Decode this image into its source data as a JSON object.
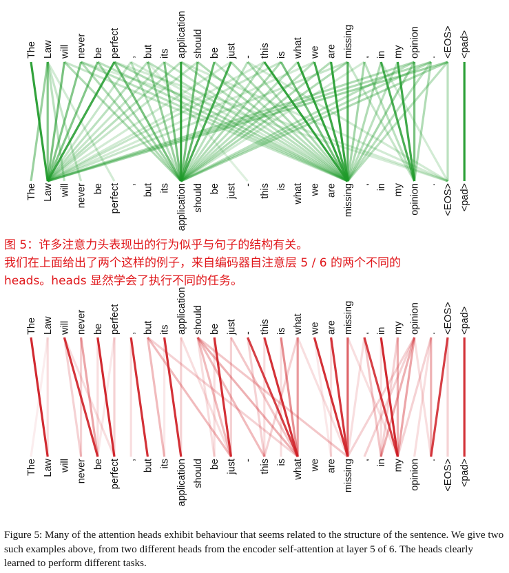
{
  "tokens": [
    "The",
    "Law",
    "will",
    "never",
    "be",
    "perfect",
    ",",
    "but",
    "its",
    "application",
    "should",
    "be",
    "just",
    "-",
    "this",
    "is",
    "what",
    "we",
    "are",
    "missing",
    ",",
    "in",
    "my",
    "opinion",
    ".",
    "<EOS>",
    "<pad>"
  ],
  "colors": {
    "green": "#1f9a2a",
    "red": "#cf1f26",
    "caption_red": "#e0181c"
  },
  "green_head": {
    "links": [
      [
        0,
        1,
        0.92
      ],
      [
        1,
        0,
        0.45
      ],
      [
        1,
        1,
        0.55
      ],
      [
        1,
        2,
        0.3
      ],
      [
        1,
        3,
        0.25
      ],
      [
        1,
        5,
        0.2
      ],
      [
        2,
        1,
        0.6
      ],
      [
        2,
        9,
        0.35
      ],
      [
        2,
        19,
        0.25
      ],
      [
        3,
        1,
        0.55
      ],
      [
        3,
        9,
        0.35
      ],
      [
        3,
        19,
        0.3
      ],
      [
        3,
        25,
        0.18
      ],
      [
        4,
        1,
        0.55
      ],
      [
        4,
        9,
        0.4
      ],
      [
        4,
        19,
        0.3
      ],
      [
        5,
        1,
        0.85
      ],
      [
        5,
        9,
        0.6
      ],
      [
        5,
        19,
        0.35
      ],
      [
        5,
        25,
        0.2
      ],
      [
        6,
        1,
        0.25
      ],
      [
        6,
        9,
        0.3
      ],
      [
        6,
        19,
        0.2
      ],
      [
        7,
        1,
        0.3
      ],
      [
        7,
        9,
        0.45
      ],
      [
        7,
        19,
        0.3
      ],
      [
        7,
        13,
        0.15
      ],
      [
        8,
        9,
        0.6
      ],
      [
        8,
        1,
        0.25
      ],
      [
        8,
        19,
        0.25
      ],
      [
        9,
        9,
        0.92
      ],
      [
        9,
        1,
        0.3
      ],
      [
        9,
        19,
        0.3
      ],
      [
        9,
        25,
        0.2
      ],
      [
        10,
        9,
        0.6
      ],
      [
        10,
        1,
        0.25
      ],
      [
        10,
        19,
        0.35
      ],
      [
        11,
        9,
        0.7
      ],
      [
        11,
        19,
        0.3
      ],
      [
        12,
        9,
        0.8
      ],
      [
        12,
        19,
        0.35
      ],
      [
        12,
        1,
        0.2
      ],
      [
        13,
        9,
        0.3
      ],
      [
        13,
        19,
        0.35
      ],
      [
        13,
        25,
        0.2
      ],
      [
        14,
        19,
        0.9
      ],
      [
        14,
        9,
        0.3
      ],
      [
        14,
        1,
        0.2
      ],
      [
        15,
        19,
        0.6
      ],
      [
        15,
        9,
        0.35
      ],
      [
        15,
        1,
        0.25
      ],
      [
        16,
        19,
        0.9
      ],
      [
        16,
        9,
        0.3
      ],
      [
        17,
        19,
        0.85
      ],
      [
        17,
        9,
        0.3
      ],
      [
        17,
        1,
        0.2
      ],
      [
        18,
        19,
        0.9
      ],
      [
        18,
        9,
        0.35
      ],
      [
        19,
        19,
        0.75
      ],
      [
        19,
        1,
        0.25
      ],
      [
        19,
        9,
        0.35
      ],
      [
        19,
        23,
        0.25
      ],
      [
        20,
        19,
        0.4
      ],
      [
        20,
        23,
        0.3
      ],
      [
        20,
        9,
        0.2
      ],
      [
        21,
        23,
        0.8
      ],
      [
        21,
        19,
        0.35
      ],
      [
        21,
        25,
        0.2
      ],
      [
        22,
        23,
        0.85
      ],
      [
        22,
        19,
        0.3
      ],
      [
        23,
        23,
        0.6
      ],
      [
        23,
        19,
        0.4
      ],
      [
        23,
        1,
        0.35
      ],
      [
        23,
        9,
        0.3
      ],
      [
        24,
        23,
        0.35
      ],
      [
        24,
        19,
        0.3
      ],
      [
        24,
        1,
        0.35
      ],
      [
        24,
        9,
        0.3
      ],
      [
        25,
        1,
        0.4
      ],
      [
        25,
        9,
        0.35
      ],
      [
        25,
        19,
        0.3
      ],
      [
        25,
        25,
        0.3
      ],
      [
        26,
        26,
        0.95
      ]
    ]
  },
  "red_head": {
    "links": [
      [
        0,
        1,
        0.95
      ],
      [
        1,
        0,
        0.08
      ],
      [
        1,
        1,
        0.15
      ],
      [
        2,
        4,
        0.9
      ],
      [
        2,
        3,
        0.2
      ],
      [
        2,
        5,
        0.15
      ],
      [
        3,
        4,
        0.4
      ],
      [
        3,
        3,
        0.2
      ],
      [
        4,
        5,
        0.95
      ],
      [
        4,
        4,
        0.15
      ],
      [
        5,
        5,
        0.2
      ],
      [
        5,
        4,
        0.1
      ],
      [
        6,
        7,
        0.92
      ],
      [
        6,
        6,
        0.15
      ],
      [
        7,
        8,
        0.3
      ],
      [
        7,
        12,
        0.3
      ],
      [
        7,
        16,
        0.2
      ],
      [
        8,
        9,
        0.92
      ],
      [
        8,
        8,
        0.1
      ],
      [
        9,
        9,
        0.2
      ],
      [
        9,
        12,
        0.15
      ],
      [
        10,
        12,
        0.3
      ],
      [
        10,
        14,
        0.3
      ],
      [
        10,
        16,
        0.35
      ],
      [
        10,
        19,
        0.25
      ],
      [
        10,
        11,
        0.15
      ],
      [
        11,
        12,
        0.92
      ],
      [
        11,
        11,
        0.15
      ],
      [
        12,
        16,
        0.25
      ],
      [
        12,
        12,
        0.2
      ],
      [
        13,
        16,
        0.85
      ],
      [
        13,
        14,
        0.2
      ],
      [
        14,
        16,
        0.92
      ],
      [
        14,
        14,
        0.15
      ],
      [
        15,
        16,
        0.5
      ],
      [
        15,
        15,
        0.15
      ],
      [
        16,
        16,
        0.45
      ],
      [
        16,
        14,
        0.2
      ],
      [
        16,
        19,
        0.15
      ],
      [
        17,
        19,
        0.92
      ],
      [
        17,
        18,
        0.1
      ],
      [
        18,
        19,
        0.9
      ],
      [
        18,
        18,
        0.15
      ],
      [
        19,
        19,
        0.7
      ],
      [
        19,
        22,
        0.15
      ],
      [
        20,
        22,
        0.85
      ],
      [
        20,
        21,
        0.25
      ],
      [
        20,
        19,
        0.15
      ],
      [
        21,
        22,
        0.95
      ],
      [
        21,
        21,
        0.15
      ],
      [
        22,
        22,
        0.35
      ],
      [
        22,
        21,
        0.2
      ],
      [
        23,
        22,
        0.4
      ],
      [
        23,
        21,
        0.35
      ],
      [
        23,
        20,
        0.2
      ],
      [
        23,
        19,
        0.2
      ],
      [
        23,
        24,
        0.15
      ],
      [
        24,
        22,
        0.2
      ],
      [
        24,
        24,
        0.35
      ],
      [
        24,
        23,
        0.15
      ],
      [
        25,
        24,
        0.85
      ],
      [
        25,
        25,
        0.2
      ],
      [
        26,
        26,
        0.92
      ]
    ]
  },
  "caption_cn": [
    "图 5：许多注意力头表现出的行为似乎与句子的结构有关。",
    "我们在上面给出了两个这样的例子，来自编码器自注意层 5 / 6 的两个不同的",
    "heads。heads 显然学会了执行不同的任务。"
  ],
  "caption_en": "Figure 5: Many of the attention heads exhibit behaviour that seems related to the structure of the sentence. We give two such examples above, from two different heads from the encoder self-attention at layer 5 of 6. The heads clearly learned to perform different tasks."
}
